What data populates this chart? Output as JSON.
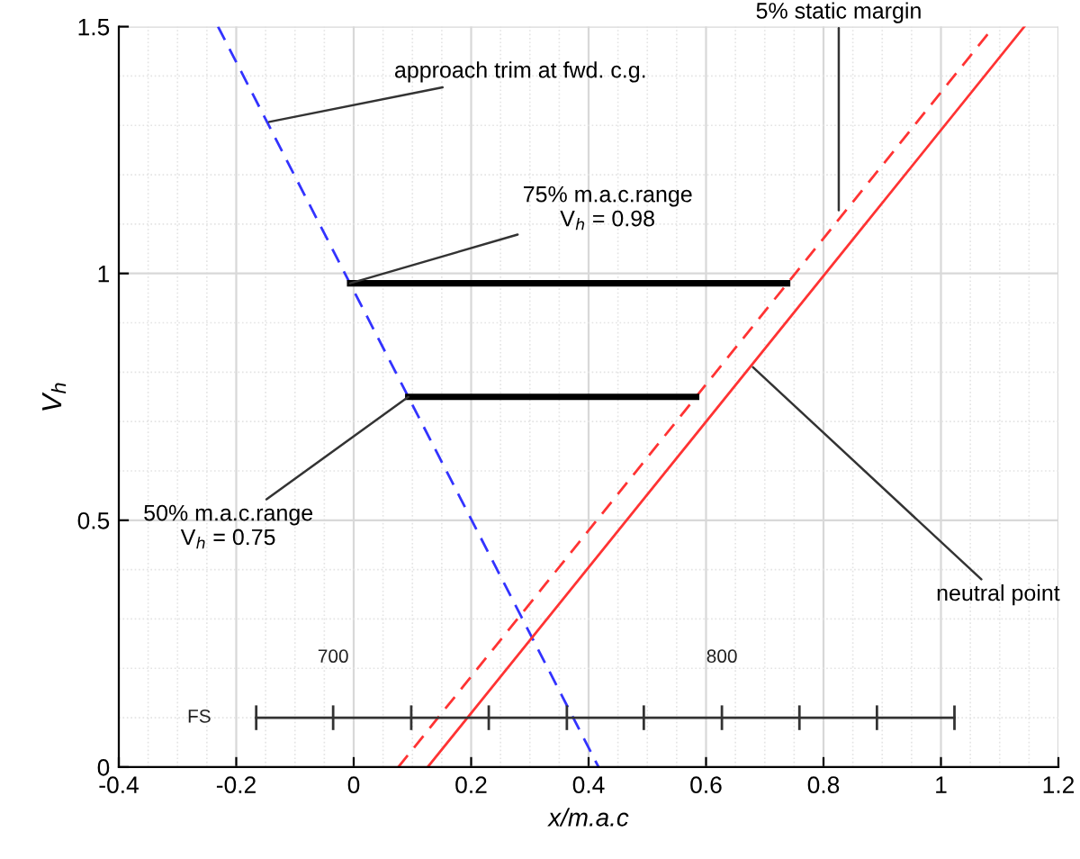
{
  "chart_data": {
    "type": "line",
    "xlabel": "x/m.a.c",
    "ylabel": "V$_{h}$",
    "xlim": [
      -0.4,
      1.2
    ],
    "xticks": [
      -0.4,
      -0.2,
      0,
      0.2,
      0.4,
      0.6,
      0.8,
      1,
      1.2
    ],
    "ylim": [
      0,
      1.5
    ],
    "yticks": [
      0,
      0.5,
      1,
      1.5
    ],
    "grid": true,
    "series": [
      {
        "x": [
          -0.231,
          0.417
        ],
        "values": [
          1.5,
          0
        ],
        "color": "#3333ff",
        "line_style": "dashed"
      },
      {
        "x": [
          0.076,
          1.09
        ],
        "values": [
          0,
          1.5
        ],
        "color": "#ff3333",
        "line_style": "dashed"
      },
      {
        "x": [
          0.126,
          1.142
        ],
        "values": [
          0,
          1.5
        ],
        "color": "#ff3333",
        "line_style": "solid"
      },
      {
        "x": [
          -0.006,
          0.738
        ],
        "values": [
          0.98,
          0.98
        ],
        "color": "#000000",
        "line_style": "solid"
      },
      {
        "x": [
          0.093,
          0.583
        ],
        "values": [
          0.75,
          0.75
        ],
        "color": "#000000",
        "line_style": "solid"
      },
      {
        "x": [
          -0.166,
          -0.035,
          0.098,
          0.23,
          0.363,
          0.494,
          0.627,
          0.759,
          0.891,
          1.023
        ],
        "values": [
          0.1,
          0.1,
          0.1,
          0.1,
          0.1,
          0.1,
          0.1,
          0.1,
          0.1,
          0.1
        ],
        "errors": [
          0.025,
          0.025,
          0.025,
          0.025,
          0.025,
          0.025,
          0.025,
          0.025,
          0.025,
          0.025
        ],
        "color": "#333333",
        "line_style": "solid"
      }
    ],
    "annotations": [
      {
        "text": "approach trim at fwd. c.g.",
        "x": -0.144,
        "y": 1.307
      },
      {
        "text": "5% static margin",
        "x": 0.826,
        "y": 1.128
      },
      {
        "text": "75% m.a.c.range\nV$_{h}$ = 0.98",
        "x": -0.006,
        "y": 0.98
      },
      {
        "text": "50% m.a.c.range\nV$_{h}$ = 0.75",
        "x": 0.093,
        "y": 0.75
      },
      {
        "text": "neutral point",
        "x": 0.68,
        "y": 0.81
      },
      "FS",
      "700",
      "800"
    ]
  }
}
